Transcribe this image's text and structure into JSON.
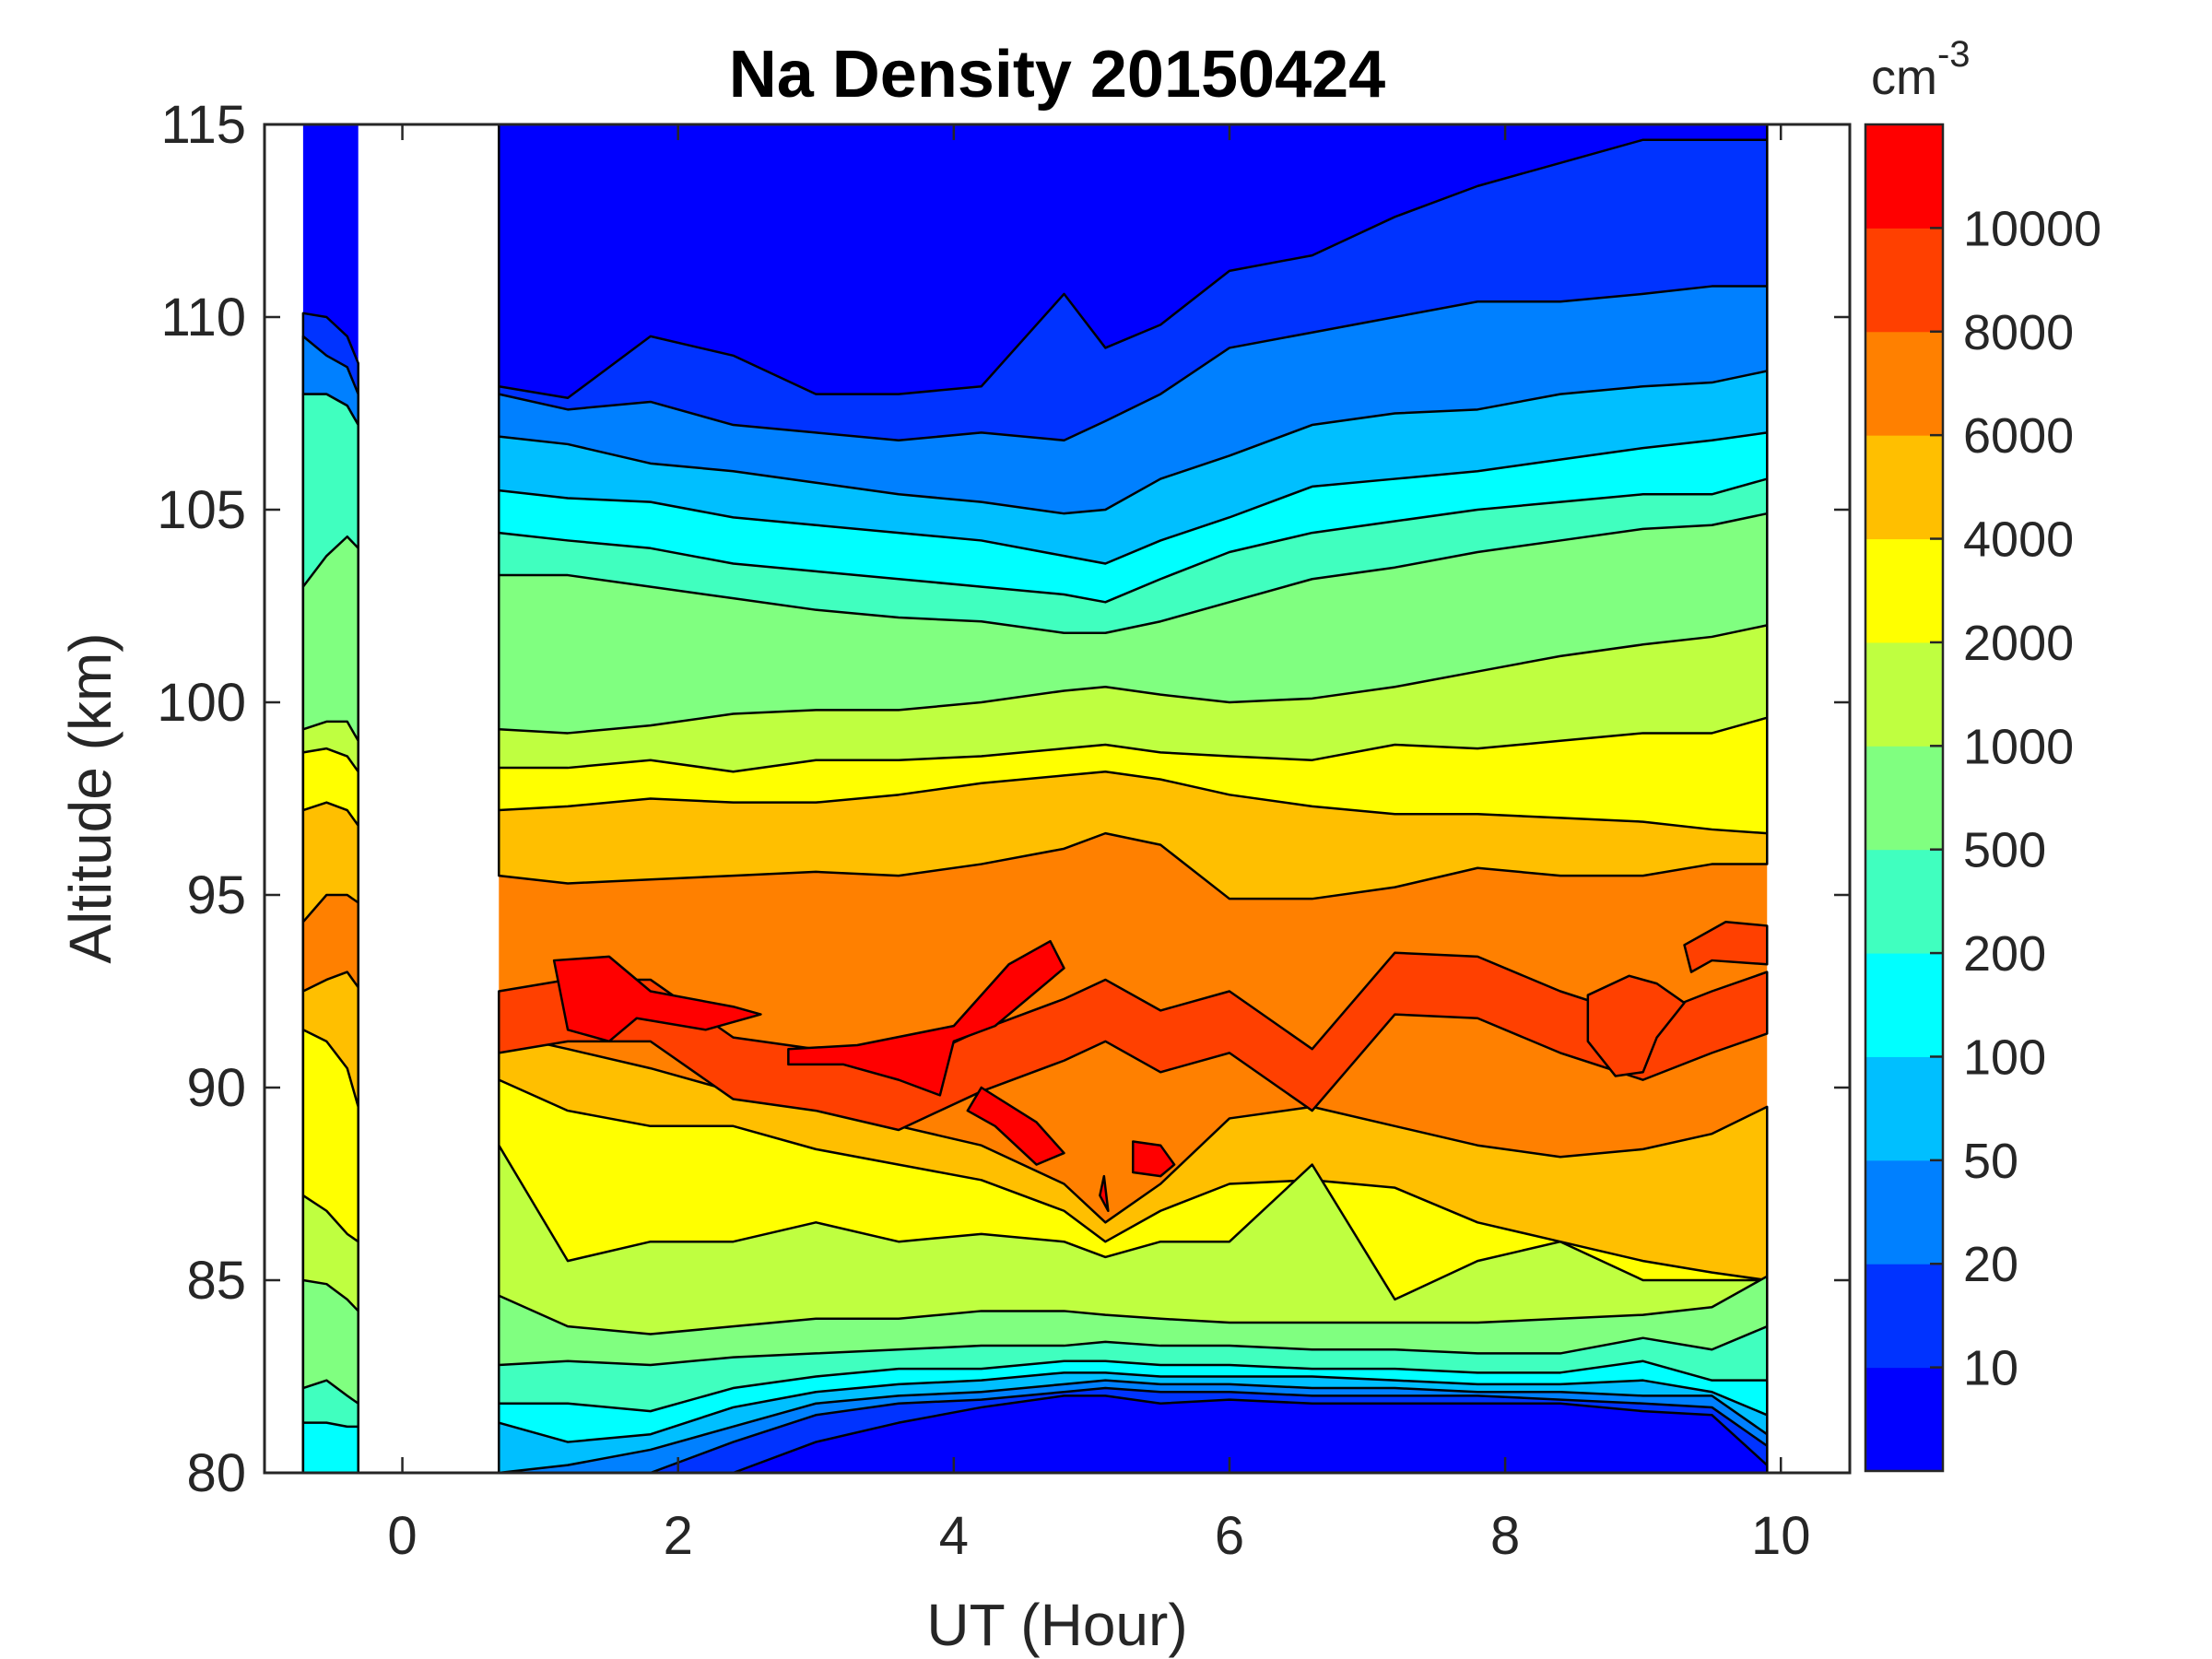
{
  "chart_data": {
    "type": "contourf",
    "title": "Na Density 20150424",
    "xlabel": "UT (Hour)",
    "ylabel": "Altitude (km)",
    "xlim": [
      -1.0,
      10.5
    ],
    "ylim": [
      80,
      115
    ],
    "xticks": [
      0,
      2,
      4,
      6,
      8,
      10
    ],
    "yticks": [
      80,
      85,
      90,
      95,
      100,
      105,
      110,
      115
    ],
    "colorbar": {
      "unit": "cm",
      "unit_exponent": "-3",
      "levels": [
        0,
        10,
        20,
        50,
        100,
        200,
        500,
        1000,
        2000,
        4000,
        6000,
        8000,
        10000,
        12000
      ],
      "tick_labels": [
        "10",
        "20",
        "50",
        "100",
        "200",
        "500",
        "1000",
        "2000",
        "4000",
        "6000",
        "8000",
        "10000"
      ],
      "colors": [
        "#0000ff",
        "#0033ff",
        "#0080ff",
        "#00bfff",
        "#00ffff",
        "#40ffbf",
        "#80ff80",
        "#bfff40",
        "#ffff00",
        "#ffbf00",
        "#ff8000",
        "#ff4000",
        "#ff0000"
      ]
    },
    "data_segments": [
      {
        "name": "early-strip",
        "x": [
          -0.72,
          -0.55,
          -0.4,
          -0.32
        ],
        "boundaries_km": [
          [
            80,
            80,
            80,
            80
          ],
          [
            80,
            80,
            80,
            80
          ],
          [
            80,
            80,
            80,
            80
          ],
          [
            80,
            80,
            80,
            80
          ],
          [
            81.3,
            81.3,
            81.2,
            81.2
          ],
          [
            82.2,
            82.4,
            82.0,
            81.8
          ],
          [
            85.0,
            84.9,
            84.5,
            84.2
          ],
          [
            87.2,
            86.8,
            86.2,
            86.0
          ],
          [
            91.5,
            91.2,
            90.5,
            89.5
          ],
          [
            92.5,
            92.8,
            93.0,
            92.6
          ],
          [
            94.3,
            95.0,
            95.0,
            94.8
          ],
          [
            94.3,
            95.0,
            95.0,
            94.8
          ],
          [
            94.3,
            95.0,
            95.0,
            94.8
          ],
          [
            97.2,
            97.4,
            97.2,
            96.8
          ],
          [
            98.7,
            98.8,
            98.6,
            98.2
          ],
          [
            99.3,
            99.5,
            99.5,
            99.0
          ],
          [
            103.0,
            103.8,
            104.3,
            104.0
          ],
          [
            103.0,
            103.8,
            104.3,
            104.0
          ],
          [
            108.0,
            108.0,
            107.7,
            107.2
          ],
          [
            109.5,
            109.0,
            108.7,
            108.0
          ],
          [
            110.1,
            110.0,
            109.5,
            108.8
          ]
        ]
      }
    ],
    "main_segment": {
      "x_start": 0.7,
      "x_end": 9.9,
      "description": "Na layer peaking near 90–93 km with densities above 10000 cm^-3 around 1.5 UT and 3–5.5 UT; layer centroid rising to ~93–94 km after 7 UT; bottomside near 81–83 km, topside densities below 10 cm^-3 above ~107–110 km"
    },
    "contour_bands_main": {
      "x": [
        0.7,
        1.2,
        1.8,
        2.4,
        3.0,
        3.6,
        4.2,
        4.8,
        5.1,
        5.5,
        6.0,
        6.6,
        7.2,
        7.8,
        8.4,
        9.0,
        9.5,
        9.9
      ],
      "level_top_km": {
        "10": [
          80.0,
          80.0,
          80.0,
          80.0,
          80.8,
          81.3,
          81.7,
          82.0,
          82.0,
          81.8,
          81.9,
          81.8,
          81.8,
          81.8,
          81.8,
          81.6,
          81.5,
          80.2
        ],
        "20": [
          80.0,
          80.0,
          80.0,
          80.8,
          81.5,
          81.8,
          81.9,
          82.1,
          82.2,
          82.1,
          82.1,
          82.0,
          82.0,
          82.0,
          81.9,
          81.8,
          81.7,
          80.7
        ],
        "50": [
          80.0,
          80.2,
          80.6,
          81.2,
          81.8,
          82.0,
          82.1,
          82.3,
          82.4,
          82.3,
          82.3,
          82.2,
          82.2,
          82.1,
          82.1,
          82.0,
          82.0,
          81.0
        ],
        "100": [
          81.3,
          80.8,
          81.0,
          81.7,
          82.1,
          82.3,
          82.4,
          82.6,
          82.6,
          82.5,
          82.5,
          82.5,
          82.4,
          82.3,
          82.3,
          82.4,
          82.1,
          81.5
        ],
        "200": [
          81.8,
          81.8,
          81.6,
          82.2,
          82.5,
          82.7,
          82.7,
          82.9,
          82.9,
          82.8,
          82.8,
          82.7,
          82.7,
          82.6,
          82.6,
          82.9,
          82.4,
          82.4
        ],
        "500": [
          82.8,
          82.9,
          82.8,
          83.0,
          83.1,
          83.2,
          83.3,
          83.3,
          83.4,
          83.3,
          83.3,
          83.2,
          83.2,
          83.1,
          83.1,
          83.5,
          83.2,
          83.8
        ],
        "1000": [
          84.6,
          83.8,
          83.6,
          83.8,
          84.0,
          84.0,
          84.2,
          84.2,
          84.1,
          84.0,
          83.9,
          83.9,
          83.9,
          83.9,
          84.0,
          84.1,
          84.3,
          85.1
        ],
        "2000": [
          88.5,
          85.5,
          86.0,
          86.0,
          86.5,
          86.0,
          86.2,
          86.0,
          85.6,
          86.0,
          86.0,
          88.0,
          84.5,
          85.5,
          86.0,
          85.0,
          85.0,
          85.0
        ],
        "4000": [
          90.2,
          89.4,
          89.0,
          89.0,
          88.4,
          88.0,
          87.6,
          86.8,
          86.0,
          86.8,
          87.5,
          87.6,
          87.4,
          86.5,
          86.0,
          85.5,
          85.2,
          85.0
        ],
        "6000": [
          91.4,
          91.0,
          90.5,
          89.9,
          89.5,
          89.0,
          88.5,
          87.5,
          86.5,
          87.5,
          89.2,
          89.5,
          89.0,
          88.5,
          88.2,
          88.4,
          88.8,
          89.5
        ],
        "8000": [
          92.5,
          93.6,
          94.0,
          92.8,
          92.3,
          93.2,
          93.9,
          94.1,
          95.2,
          94.8,
          95.8,
          94.4,
          93.5,
          95.3,
          94.9,
          93.9,
          94.2,
          94.4
        ],
        "10000": [
          92.5,
          92.8,
          92.8,
          91.3,
          91.0,
          90.5,
          91.5,
          92.3,
          92.8,
          92.0,
          92.5,
          91.0,
          93.5,
          93.4,
          92.5,
          91.8,
          92.5,
          93.0
        ],
        "12000": [
          0,
          93.3,
          92.7,
          0,
          90.8,
          91.2,
          91.8,
          0,
          0,
          0,
          0,
          0,
          0,
          0,
          0,
          0,
          0,
          0
        ]
      },
      "level_upper_km": {
        "6000": [
          95.5,
          95.3,
          95.4,
          95.5,
          95.6,
          95.5,
          95.8,
          96.2,
          96.6,
          96.3,
          94.9,
          94.9,
          95.2,
          95.7,
          95.5,
          95.5,
          95.8,
          95.8
        ],
        "4000": [
          97.2,
          97.3,
          97.5,
          97.4,
          97.4,
          97.6,
          97.9,
          98.1,
          98.2,
          98.0,
          97.6,
          97.3,
          97.1,
          97.1,
          97.0,
          96.9,
          96.7,
          96.6
        ],
        "2000": [
          98.3,
          98.3,
          98.5,
          98.2,
          98.5,
          98.5,
          98.6,
          98.8,
          98.9,
          98.7,
          98.6,
          98.5,
          98.9,
          98.8,
          99.0,
          99.2,
          99.2,
          99.6
        ],
        "1000": [
          99.3,
          99.2,
          99.4,
          99.7,
          99.8,
          99.8,
          100.0,
          100.3,
          100.4,
          100.2,
          100.0,
          100.1,
          100.4,
          100.8,
          101.2,
          101.5,
          101.7,
          102.0
        ],
        "500": [
          103.3,
          103.3,
          103.0,
          102.7,
          102.4,
          102.2,
          102.1,
          101.8,
          101.8,
          102.1,
          102.6,
          103.2,
          103.5,
          103.9,
          104.2,
          104.5,
          104.6,
          104.9
        ],
        "200": [
          104.4,
          104.2,
          104.0,
          103.6,
          103.4,
          103.2,
          103.0,
          102.8,
          102.6,
          103.2,
          103.9,
          104.4,
          104.7,
          105.0,
          105.2,
          105.4,
          105.4,
          105.8
        ],
        "100": [
          105.5,
          105.3,
          105.2,
          104.8,
          104.6,
          104.4,
          104.2,
          103.8,
          103.6,
          104.2,
          104.8,
          105.6,
          105.8,
          106.0,
          106.3,
          106.6,
          106.8,
          107.0
        ],
        "50": [
          106.9,
          106.7,
          106.2,
          106.0,
          105.7,
          105.4,
          105.2,
          104.9,
          105.0,
          105.8,
          106.4,
          107.2,
          107.5,
          107.6,
          108.0,
          108.2,
          108.3,
          108.6
        ],
        "20": [
          108.0,
          107.6,
          107.8,
          107.2,
          107.0,
          106.8,
          107.0,
          106.8,
          107.3,
          108.0,
          109.2,
          109.6,
          110.0,
          110.4,
          110.4,
          110.6,
          110.8,
          110.8
        ],
        "10": [
          108.2,
          107.9,
          109.5,
          109.0,
          108.0,
          108.0,
          108.2,
          110.6,
          109.2,
          109.8,
          111.2,
          111.6,
          112.6,
          113.4,
          114.0,
          114.6,
          114.6,
          114.6
        ]
      }
    }
  }
}
